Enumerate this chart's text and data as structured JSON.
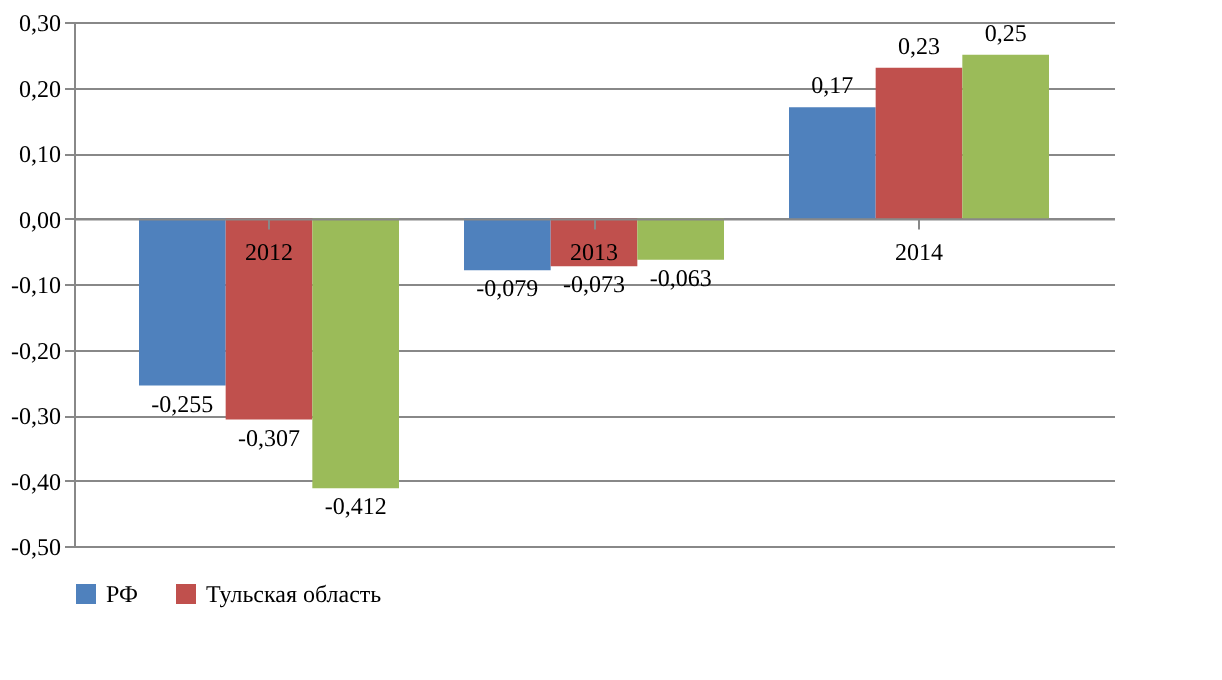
{
  "chart_data": {
    "type": "bar",
    "categories": [
      "2012",
      "2013",
      "2014"
    ],
    "series": [
      {
        "name": "РФ",
        "color": "#4f81bd",
        "values": [
          -0.255,
          -0.079,
          0.17
        ],
        "value_labels": [
          "-0,255",
          "-0,079",
          "0,17"
        ]
      },
      {
        "name": "Тульская область",
        "color": "#c0504d",
        "values": [
          -0.307,
          -0.073,
          0.23
        ],
        "value_labels": [
          "-0,307",
          "-0,073",
          "0,23"
        ]
      },
      {
        "color": "#9bbb59",
        "values": [
          -0.412,
          -0.063,
          0.25
        ],
        "value_labels": [
          "-0,412",
          "-0,063",
          "0,25"
        ]
      }
    ],
    "ylim": [
      -0.5,
      0.3
    ],
    "yticks": [
      {
        "value": -0.5,
        "label": "-0,50"
      },
      {
        "value": -0.4,
        "label": "-0,40"
      },
      {
        "value": -0.3,
        "label": "-0,30"
      },
      {
        "value": -0.2,
        "label": "-0,20"
      },
      {
        "value": -0.1,
        "label": "-0,10"
      },
      {
        "value": 0,
        "label": "0,00"
      },
      {
        "value": 0.1,
        "label": "0,10"
      },
      {
        "value": 0.2,
        "label": "0,20"
      },
      {
        "value": 0.3,
        "label": "0,30"
      }
    ],
    "grid": "y",
    "legend": "bottom"
  }
}
